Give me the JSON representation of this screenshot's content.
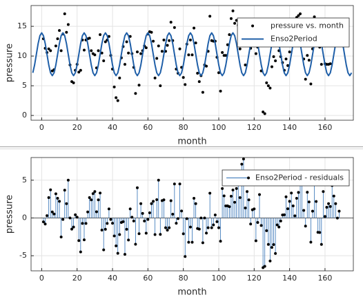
{
  "chart_data": [
    {
      "type": "scatter",
      "xlabel": "month",
      "ylabel": "pressure",
      "xlim": [
        -6,
        176
      ],
      "ylim": [
        -0.8,
        18.5
      ],
      "xticks": [
        0,
        20,
        40,
        60,
        80,
        100,
        120,
        140,
        160
      ],
      "yticks": [
        0,
        5,
        10,
        15
      ],
      "grid": true,
      "legend": "upper right",
      "series": [
        {
          "name": "pressure vs. month",
          "type": "scatter",
          "color": "#000000",
          "x": [
            1,
            2,
            3,
            4,
            5,
            6,
            7,
            8,
            9,
            10,
            11,
            12,
            13,
            14,
            15,
            16,
            17,
            18,
            19,
            20,
            21,
            22,
            23,
            24,
            25,
            26,
            27,
            28,
            29,
            30,
            31,
            32,
            33,
            34,
            35,
            36,
            37,
            38,
            39,
            40,
            41,
            42,
            43,
            44,
            45,
            46,
            47,
            48,
            49,
            50,
            51,
            52,
            53,
            54,
            55,
            56,
            57,
            58,
            59,
            60,
            61,
            62,
            63,
            64,
            65,
            66,
            67,
            68,
            69,
            70,
            71,
            72,
            73,
            74,
            75,
            76,
            77,
            78,
            79,
            80,
            81,
            82,
            83,
            84,
            85,
            86,
            87,
            88,
            89,
            90,
            91,
            92,
            93,
            94,
            95,
            96,
            97,
            98,
            99,
            100,
            101,
            102,
            103,
            104,
            105,
            106,
            107,
            108,
            109,
            110,
            111,
            112,
            113,
            114,
            115,
            116,
            117,
            118,
            119,
            120,
            121,
            122,
            123,
            124,
            125,
            126,
            127,
            128,
            129,
            130,
            131,
            132,
            133,
            134,
            135,
            136,
            137,
            138,
            139,
            140,
            141,
            142,
            143,
            144,
            145,
            146,
            147,
            148,
            149,
            150,
            151,
            152,
            153,
            154,
            155,
            156,
            157,
            158,
            159,
            160,
            161,
            162,
            163,
            164,
            165,
            166,
            167,
            168
          ],
          "values": [
            12.9,
            11.3,
            10.6,
            11.2,
            10.9,
            7.5,
            7.7,
            11.7,
            12.9,
            14.3,
            10.9,
            13.7,
            17.1,
            14.0,
            15.3,
            8.5,
            5.7,
            5.5,
            7.6,
            8.6,
            7.3,
            7.6,
            12.7,
            11.0,
            12.7,
            12.9,
            13.0,
            10.9,
            10.4,
            10.2,
            8.0,
            10.9,
            13.6,
            10.5,
            9.2,
            12.4,
            12.7,
            13.3,
            10.1,
            7.8,
            4.8,
            3.0,
            2.5,
            6.3,
            9.7,
            11.6,
            8.6,
            12.4,
            10.5,
            13.3,
            10.4,
            8.1,
            3.7,
            10.7,
            5.1,
            10.4,
            10.9,
            11.7,
            11.4,
            13.7,
            14.1,
            14.0,
            12.5,
            6.3,
            9.6,
            11.7,
            5.0,
            10.8,
            12.7,
            10.8,
            11.8,
            12.6,
            15.7,
            12.6,
            14.8,
            7.8,
            7.1,
            11.2,
            8.1,
            6.4,
            5.2,
            12.0,
            10.2,
            12.7,
            10.2,
            14.7,
            12.2,
            7.1,
            5.7,
            6.7,
            3.9,
            8.5,
            8.3,
            10.8,
            16.7,
            12.6,
            12.5,
            12.5,
            9.8,
            7.2,
            4.1,
            10.6,
            10.1,
            10.1,
            11.9,
            13.6,
            16.3,
            17.6,
            15.5,
            16.0,
            15.2,
            11.2,
            14.3,
            14.5,
            8.5,
            12.0,
            12.7,
            11.3,
            14.5,
            15.1,
            10.4,
            11.5,
            13.4,
            7.5,
            0.6,
            0.3,
            5.5,
            5.0,
            4.6,
            8.2,
            9.9,
            9.2,
            12.5,
            10.9,
            9.9,
            8.9,
            7.6,
            9.5,
            8.4,
            10.7,
            13.6,
            13.7,
            13.7,
            16.5,
            16.8,
            17.1,
            15.4,
            9.5,
            6.1,
            10.1,
            9.3,
            5.3,
            11.2,
            16.6,
            15.6,
            12.0,
            11.5,
            8.6,
            13.8,
            8.7,
            8.6,
            8.6,
            8.7,
            12.8,
            13.2,
            14.0,
            13.4,
            14.8
          ]
        },
        {
          "name": "Enso2Period",
          "type": "line",
          "color": "#1f5fa8",
          "x": [
            -5,
            -4,
            -3,
            -2,
            -1,
            0,
            1,
            2,
            3,
            4,
            5,
            6,
            7,
            8,
            9,
            10,
            11,
            12,
            13,
            14,
            15,
            16,
            17,
            18,
            19,
            20,
            21,
            22,
            23,
            24,
            25,
            26,
            27,
            28,
            29,
            30,
            31,
            32,
            33,
            34,
            35,
            36,
            37,
            38,
            39,
            40,
            41,
            42,
            43,
            44,
            45,
            46,
            47,
            48,
            49,
            50,
            51,
            52,
            53,
            54,
            55,
            56,
            57,
            58,
            59,
            60,
            61,
            62,
            63,
            64,
            65,
            66,
            67,
            68,
            69,
            70,
            71,
            72,
            73,
            74,
            75,
            76,
            77,
            78,
            79,
            80,
            81,
            82,
            83,
            84,
            85,
            86,
            87,
            88,
            89,
            90,
            91,
            92,
            93,
            94,
            95,
            96,
            97,
            98,
            99,
            100,
            101,
            102,
            103,
            104,
            105,
            106,
            107,
            108,
            109,
            110,
            111,
            112,
            113,
            114,
            115,
            116,
            117,
            118,
            119,
            120,
            121,
            122,
            123,
            124,
            125,
            126,
            127,
            128,
            129,
            130,
            131,
            132,
            133,
            134,
            135,
            136,
            137,
            138,
            139,
            140,
            141,
            142,
            143,
            144,
            145,
            146,
            147,
            148,
            149,
            150,
            151,
            152,
            153,
            154,
            155,
            156,
            157,
            158,
            159,
            160,
            161,
            162,
            163,
            164,
            165,
            166,
            167,
            168,
            169,
            170,
            171,
            172,
            173,
            174,
            175
          ],
          "values": [
            7.18,
            8.5,
            10.3,
            12.1,
            13.42,
            13.9,
            13.42,
            12.1,
            10.3,
            8.5,
            7.18,
            6.7,
            7.18,
            8.5,
            10.3,
            12.1,
            13.42,
            13.9,
            13.42,
            12.1,
            10.3,
            8.5,
            7.18,
            6.7,
            7.18,
            8.5,
            10.3,
            12.1,
            13.42,
            13.9,
            13.42,
            12.1,
            10.3,
            8.5,
            7.18,
            6.7,
            7.18,
            8.5,
            10.3,
            12.1,
            13.42,
            13.9,
            13.42,
            12.1,
            10.3,
            8.5,
            7.18,
            6.7,
            7.18,
            8.5,
            10.3,
            12.1,
            13.42,
            13.9,
            13.42,
            12.1,
            10.3,
            8.5,
            7.18,
            6.7,
            7.18,
            8.5,
            10.3,
            12.1,
            13.42,
            13.9,
            13.42,
            12.1,
            10.3,
            8.5,
            7.18,
            6.7,
            7.18,
            8.5,
            10.3,
            12.1,
            13.42,
            13.9,
            13.42,
            12.1,
            10.3,
            8.5,
            7.18,
            6.7,
            7.18,
            8.5,
            10.3,
            12.1,
            13.42,
            13.9,
            13.42,
            12.1,
            10.3,
            8.5,
            7.18,
            6.7,
            7.18,
            8.5,
            10.3,
            12.1,
            13.42,
            13.9,
            13.42,
            12.1,
            10.3,
            8.5,
            7.18,
            6.7,
            7.18,
            8.5,
            10.3,
            12.1,
            13.42,
            13.9,
            13.42,
            12.1,
            10.3,
            8.5,
            7.18,
            6.7,
            7.18,
            8.5,
            10.3,
            12.1,
            13.42,
            13.9,
            13.42,
            12.1,
            10.3,
            8.5,
            7.18,
            6.7,
            7.18,
            8.5,
            10.3,
            12.1,
            13.42,
            13.9,
            13.42,
            12.1,
            10.3,
            8.5,
            7.18,
            6.7,
            7.18,
            8.5,
            10.3,
            12.1,
            13.42,
            13.9,
            13.42,
            12.1,
            10.3,
            8.5,
            7.18,
            6.7,
            7.18,
            8.5,
            10.3,
            12.1,
            13.42,
            13.9,
            13.42,
            12.1,
            10.3,
            8.5,
            7.18,
            6.7,
            7.18,
            8.5,
            10.3,
            12.1,
            13.42,
            13.9,
            13.42,
            12.1,
            10.3,
            8.5,
            7.18,
            6.7,
            7.18
          ]
        }
      ]
    },
    {
      "type": "stem",
      "xlabel": "month",
      "ylabel": "pressure",
      "xlim": [
        -6,
        176
      ],
      "ylim": [
        -7,
        8
      ],
      "xticks": [
        0,
        20,
        40,
        60,
        80,
        100,
        120,
        140,
        160
      ],
      "yticks": [
        -5,
        0,
        5
      ],
      "grid": true,
      "legend": "upper right",
      "series": [
        {
          "name": "Enso2Period - residuals",
          "type": "stem",
          "color": "#2e6fb5",
          "marker_color": "#000000",
          "x": [
            1,
            2,
            3,
            4,
            5,
            6,
            7,
            8,
            9,
            10,
            11,
            12,
            13,
            14,
            15,
            16,
            17,
            18,
            19,
            20,
            21,
            22,
            23,
            24,
            25,
            26,
            27,
            28,
            29,
            30,
            31,
            32,
            33,
            34,
            35,
            36,
            37,
            38,
            39,
            40,
            41,
            42,
            43,
            44,
            45,
            46,
            47,
            48,
            49,
            50,
            51,
            52,
            53,
            54,
            55,
            56,
            57,
            58,
            59,
            60,
            61,
            62,
            63,
            64,
            65,
            66,
            67,
            68,
            69,
            70,
            71,
            72,
            73,
            74,
            75,
            76,
            77,
            78,
            79,
            80,
            81,
            82,
            83,
            84,
            85,
            86,
            87,
            88,
            89,
            90,
            91,
            92,
            93,
            94,
            95,
            96,
            97,
            98,
            99,
            100,
            101,
            102,
            103,
            104,
            105,
            106,
            107,
            108,
            109,
            110,
            111,
            112,
            113,
            114,
            115,
            116,
            117,
            118,
            119,
            120,
            121,
            122,
            123,
            124,
            125,
            126,
            127,
            128,
            129,
            130,
            131,
            132,
            133,
            134,
            135,
            136,
            137,
            138,
            139,
            140,
            141,
            142,
            143,
            144,
            145,
            146,
            147,
            148,
            149,
            150,
            151,
            152,
            153,
            154,
            155,
            156,
            157,
            158,
            159,
            160,
            161,
            162,
            163,
            164,
            165,
            166,
            167,
            168
          ],
          "values": [
            -0.52,
            -0.8,
            0.3,
            2.7,
            3.72,
            0.8,
            0.52,
            3.2,
            2.6,
            2.2,
            -2.52,
            -0.2,
            3.68,
            1.9,
            5.0,
            0,
            -1.48,
            -1.2,
            0.42,
            0.1,
            -3.0,
            -4.5,
            -0.72,
            -2.9,
            -0.72,
            0.8,
            2.7,
            2.4,
            3.22,
            3.5,
            0.82,
            2.4,
            3.3,
            -1.6,
            -4.22,
            -1.5,
            -0.72,
            1.2,
            -0.2,
            -0.7,
            -2.38,
            -3.7,
            -4.68,
            -2.2,
            -0.6,
            -0.5,
            -4.82,
            -1.5,
            -2.92,
            1.2,
            0.1,
            -0.4,
            -3.48,
            4.0,
            -2.08,
            1.9,
            0.6,
            -0.4,
            -2.02,
            -0.2,
            0.68,
            1.9,
            2.2,
            -2.2,
            2.42,
            5.0,
            -2.18,
            2.3,
            2.4,
            -1.3,
            -1.62,
            -1.3,
            2.28,
            0.5,
            4.5,
            -0.7,
            -0.08,
            4.5,
            0.92,
            -2.1,
            -5.1,
            -0.1,
            -3.22,
            -1.2,
            -3.22,
            2.6,
            1.9,
            -1.4,
            -1.48,
            0,
            -3.28,
            0,
            -2.0,
            -1.3,
            3.28,
            -1.3,
            -0.92,
            0.4,
            -0.5,
            -1.3,
            -3.08,
            3.9,
            2.92,
            1.6,
            1.6,
            1.5,
            2.88,
            3.7,
            2.08,
            3.9,
            4.9,
            2.7,
            7.12,
            7.8,
            1.32,
            3.5,
            2.4,
            -0.8,
            1.08,
            1.2,
            -3.02,
            -0.6,
            3.1,
            -1.0,
            -6.58,
            -6.4,
            -1.68,
            -3.5,
            -5.7,
            -3.9,
            -3.52,
            -4.7,
            -0.92,
            -1.2,
            -0.4,
            0.4,
            0.42,
            2.8,
            1.22,
            2.2,
            3.3,
            1.6,
            0.28,
            2.6,
            3.38,
            5.0,
            5.1,
            1.0,
            -1.08,
            3.4,
            2.12,
            -3.2,
            0.9,
            4.5,
            2.18,
            -1.9,
            -1.92,
            -3.5,
            3.5,
            0.2,
            1.42,
            1.9,
            1.52,
            4.3,
            2.9,
            1.9,
            -0.02,
            0.9
          ]
        }
      ]
    }
  ]
}
